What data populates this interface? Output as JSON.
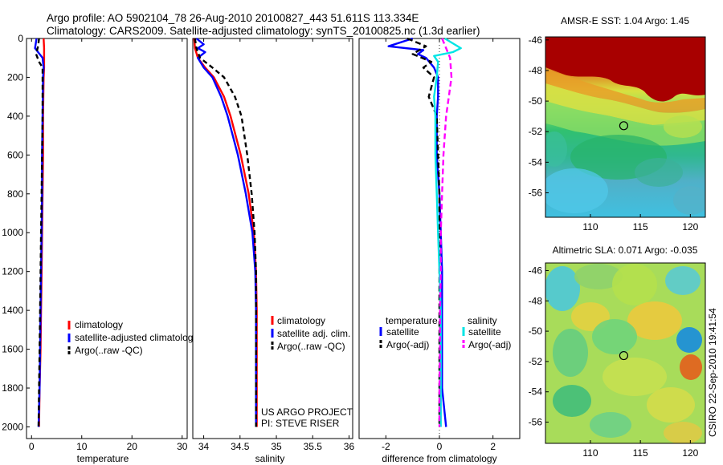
{
  "header": {
    "line1": "Argo profile: AO 5902104_78 26-Aug-2010 20100827_443 51.611S 113.334E",
    "line2": "Climatology: CARS2009. Satellite-adjusted climatology: synTS_20100825.nc (1.3d earlier)"
  },
  "credit": {
    "project": "US ARGO PROJECT",
    "pi": "PI: STEVE RISER",
    "stamp": "CSIRO 22-Sep-2010 19:41:54"
  },
  "colors": {
    "climatology": "#ff0000",
    "satellite": "#0000ff",
    "argo": "#000000",
    "sal_satellite": "#00e5e5",
    "sal_argo": "#ff00ff"
  },
  "chart_data": [
    {
      "type": "line",
      "id": "temperature",
      "xlabel": "temperature",
      "ylabel": "",
      "xlim": [
        -1,
        31
      ],
      "ylim": [
        2060,
        0
      ],
      "xticks": [
        0,
        10,
        20,
        30
      ],
      "yticks": [
        0,
        200,
        400,
        600,
        800,
        1000,
        1200,
        1400,
        1600,
        1800,
        2000
      ],
      "legend": {
        "position": "lower-right",
        "entries": [
          "climatology",
          "satellite-adjusted climatolog",
          "Argo(..raw -QC)"
        ]
      },
      "series": [
        {
          "name": "climatology",
          "color": "#ff0000",
          "dash": "",
          "depth": [
            0,
            50,
            100,
            150,
            200,
            400,
            600,
            800,
            1000,
            1200,
            1400,
            1600,
            1800,
            2000
          ],
          "values": [
            2.4,
            2.5,
            2.5,
            2.5,
            2.4,
            2.3,
            2.3,
            2.2,
            2.1,
            2.0,
            1.9,
            1.8,
            1.6,
            1.5
          ]
        },
        {
          "name": "satellite-adjusted climatology",
          "color": "#0000ff",
          "dash": "",
          "depth": [
            0,
            50,
            100,
            150,
            200,
            400,
            600,
            800,
            1000,
            1200,
            1400,
            1600,
            1800,
            2000
          ],
          "values": [
            1.0,
            0.7,
            2.2,
            2.4,
            2.3,
            2.2,
            2.1,
            2.1,
            2.0,
            1.9,
            1.8,
            1.7,
            1.6,
            1.4
          ]
        },
        {
          "name": "Argo(..raw -QC)",
          "color": "#000000",
          "dash": "6,4",
          "depth": [
            0,
            40,
            80,
            120,
            150,
            200,
            400,
            600,
            800,
            1000,
            1200,
            1400,
            1600,
            1800,
            2000
          ],
          "values": [
            1.5,
            1.3,
            0.9,
            1.5,
            2.2,
            2.2,
            2.2,
            2.1,
            2.0,
            1.9,
            1.8,
            1.7,
            1.6,
            1.5,
            1.4
          ]
        }
      ]
    },
    {
      "type": "line",
      "id": "salinity",
      "xlabel": "salinity",
      "ylabel": "",
      "xlim": [
        33.85,
        36.05
      ],
      "ylim": [
        2060,
        0
      ],
      "xticks": [
        34,
        34.5,
        35,
        35.5,
        36
      ],
      "xticklabels": [
        "34",
        "34.5",
        "35",
        "35.5",
        "36"
      ],
      "legend": {
        "position": "lower-right",
        "entries": [
          "climatology",
          "satellite adj. clim.",
          "Argo(..raw -QC)"
        ]
      },
      "series": [
        {
          "name": "climatology",
          "color": "#ff0000",
          "dash": "",
          "depth": [
            0,
            50,
            100,
            150,
            200,
            300,
            400,
            600,
            800,
            1000,
            1200,
            1400,
            1600,
            1800,
            2000
          ],
          "values": [
            33.87,
            33.88,
            33.92,
            34.02,
            34.14,
            34.28,
            34.37,
            34.51,
            34.62,
            34.69,
            34.72,
            34.73,
            34.73,
            34.73,
            34.73
          ]
        },
        {
          "name": "satellite adj. clim.",
          "color": "#0000ff",
          "dash": "",
          "depth": [
            0,
            30,
            50,
            70,
            100,
            150,
            200,
            300,
            400,
            600,
            800,
            1000,
            1200,
            1400,
            1600,
            1800,
            2000
          ],
          "values": [
            33.9,
            34.0,
            33.92,
            34.02,
            33.92,
            34.0,
            34.12,
            34.24,
            34.33,
            34.47,
            34.58,
            34.67,
            34.71,
            34.72,
            34.72,
            34.72,
            34.72
          ]
        },
        {
          "name": "Argo(..raw -QC)",
          "color": "#000000",
          "dash": "6,4",
          "depth": [
            0,
            50,
            100,
            150,
            200,
            300,
            400,
            600,
            800,
            1000,
            1200,
            1400,
            1600,
            1800,
            2000
          ],
          "values": [
            33.88,
            33.9,
            33.95,
            34.12,
            34.28,
            34.43,
            34.52,
            34.6,
            34.66,
            34.7,
            34.72,
            34.72,
            34.72,
            34.72,
            34.72
          ]
        }
      ]
    },
    {
      "type": "line",
      "id": "difference",
      "xlabel": "difference from climatology",
      "ylabel": "",
      "xlim": [
        -3,
        3
      ],
      "ylim": [
        2060,
        0
      ],
      "xticks": [
        -2,
        0,
        2
      ],
      "legend": {
        "position": "lower-right",
        "groups": [
          {
            "heading": "temperature",
            "entries": [
              "satellite",
              "Argo(-adj)"
            ]
          },
          {
            "heading": "salinity",
            "entries": [
              "satellite",
              "Argo(-adj)"
            ]
          }
        ]
      },
      "series": [
        {
          "name": "temperature satellite",
          "color": "#0000ff",
          "dash": "",
          "depth": [
            0,
            40,
            60,
            80,
            100,
            150,
            200,
            300,
            400,
            600,
            800,
            1000,
            1200,
            1400,
            1600,
            1800,
            2000
          ],
          "values": [
            -1.0,
            -1.9,
            -0.6,
            -0.8,
            -0.5,
            -0.2,
            -0.05,
            -0.05,
            -0.1,
            -0.1,
            0.0,
            0.05,
            0.1,
            0.1,
            0.1,
            0.1,
            0.25
          ]
        },
        {
          "name": "temperature Argo(-adj)",
          "color": "#000000",
          "dash": "7,4",
          "depth": [
            0,
            40,
            80,
            120,
            150,
            200,
            300,
            400,
            600,
            800,
            1000,
            1200,
            1400,
            1600,
            1800,
            2000
          ],
          "values": [
            -1.2,
            -0.5,
            -1.0,
            -0.3,
            -0.6,
            -0.2,
            -0.4,
            -0.1,
            -0.05,
            0.0,
            0.0,
            0.0,
            0.0,
            0.0,
            0.0,
            0.0
          ]
        },
        {
          "name": "salinity satellite",
          "color": "#00e5e5",
          "dash": "",
          "depth": [
            0,
            50,
            70,
            90,
            120,
            200,
            300,
            400,
            600,
            800,
            1000,
            1200,
            1400,
            1600,
            1800,
            2000
          ],
          "values": [
            0.2,
            0.8,
            0.5,
            -0.2,
            -0.05,
            -0.1,
            -0.2,
            -0.15,
            -0.15,
            -0.1,
            -0.05,
            0.0,
            0.05,
            0.05,
            0.05,
            0.05
          ]
        },
        {
          "name": "salinity Argo(-adj)",
          "color": "#ff00ff",
          "dash": "7,4",
          "depth": [
            0,
            100,
            200,
            300,
            400,
            600,
            800,
            1000,
            1200,
            1400,
            1600,
            1800,
            2000
          ],
          "values": [
            0.1,
            0.4,
            0.45,
            0.35,
            0.25,
            0.15,
            0.1,
            0.05,
            0.05,
            0.02,
            0.02,
            0.0,
            0.0
          ]
        }
      ]
    },
    {
      "type": "heatmap",
      "id": "sst-map",
      "title": "AMSR-E SST: 1.04 Argo: 1.45",
      "xlim": [
        105.5,
        121.5
      ],
      "ylim": [
        -57.6,
        -45.8
      ],
      "xticks": [
        110,
        115,
        120
      ],
      "yticks": [
        -46,
        -48,
        -50,
        -52,
        -54,
        -56
      ],
      "marker": {
        "lon": 113.334,
        "lat": -51.611
      }
    },
    {
      "type": "heatmap",
      "id": "sla-map",
      "title": "Altimetric SLA: 0.071 Argo: -0.035",
      "xlim": [
        105.5,
        121.5
      ],
      "ylim": [
        -57.4,
        -45.5
      ],
      "xticks": [
        110,
        115,
        120
      ],
      "yticks": [
        -46,
        -48,
        -50,
        -52,
        -54,
        -56
      ],
      "marker": {
        "lon": 113.334,
        "lat": -51.611
      }
    }
  ]
}
